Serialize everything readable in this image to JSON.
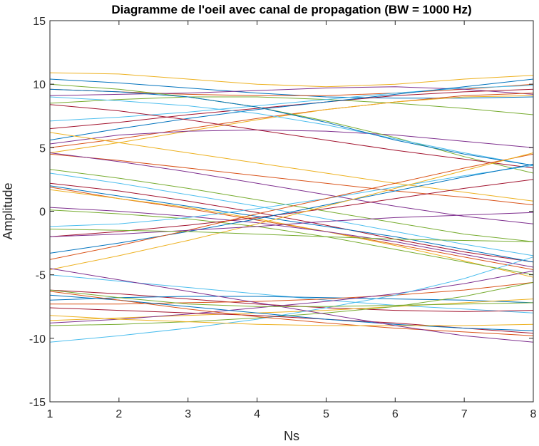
{
  "chart_data": {
    "type": "line",
    "title": "Diagramme de l'oeil avec canal de propagation (BW = 1000 Hz)",
    "xlabel": "Ns",
    "ylabel": "Amplitude",
    "xlim": [
      1,
      8
    ],
    "ylim": [
      -15,
      15
    ],
    "xticks": [
      1,
      2,
      3,
      4,
      5,
      6,
      7,
      8
    ],
    "yticks": [
      15,
      10,
      5,
      0,
      -5,
      -10,
      -15
    ],
    "grid": false,
    "colors": [
      "#0072BD",
      "#D95319",
      "#EDB120",
      "#7E2F8E",
      "#77AC30",
      "#4DBEEE",
      "#A2142F"
    ],
    "x": [
      1,
      2,
      3,
      4,
      5,
      6,
      7,
      8
    ],
    "traces": [
      [
        10.4,
        10.1,
        9.7,
        9.3,
        9.0,
        8.9,
        8.9,
        9.0
      ],
      [
        9.6,
        9.4,
        9.2,
        9.1,
        9.1,
        9.3,
        9.6,
        10.0
      ],
      [
        10.9,
        10.8,
        10.4,
        10.0,
        9.8,
        10.0,
        10.4,
        10.7
      ],
      [
        9.1,
        9.2,
        9.3,
        9.5,
        9.7,
        9.8,
        9.6,
        9.2
      ],
      [
        8.5,
        8.8,
        9.0,
        9.0,
        8.8,
        8.5,
        8.1,
        7.6
      ],
      [
        7.1,
        7.4,
        7.8,
        8.3,
        8.8,
        9.3,
        9.7,
        9.9
      ],
      [
        6.5,
        7.0,
        7.6,
        8.1,
        8.6,
        9.1,
        9.4,
        9.6
      ],
      [
        5.6,
        6.5,
        7.3,
        8.0,
        8.6,
        9.2,
        9.8,
        10.4
      ],
      [
        5.0,
        5.7,
        6.5,
        7.3,
        8.0,
        8.6,
        9.1,
        9.3
      ],
      [
        4.6,
        5.4,
        6.3,
        7.2,
        8.0,
        8.6,
        9.0,
        9.1
      ],
      [
        5.3,
        6.0,
        6.3,
        6.4,
        6.3,
        6.0,
        5.5,
        5.0
      ],
      [
        10.0,
        9.6,
        9.0,
        8.2,
        7.1,
        5.8,
        4.3,
        3.0
      ],
      [
        9.0,
        8.7,
        8.3,
        7.7,
        6.8,
        5.7,
        4.6,
        3.6
      ],
      [
        8.4,
        7.9,
        7.2,
        6.4,
        5.6,
        4.8,
        4.1,
        3.4
      ],
      [
        9.6,
        9.4,
        9.0,
        8.2,
        7.0,
        5.6,
        4.5,
        3.6
      ],
      [
        4.5,
        4.0,
        3.4,
        2.8,
        2.2,
        1.6,
        1.1,
        0.5
      ],
      [
        6.2,
        5.4,
        4.6,
        3.8,
        3.0,
        2.2,
        1.5,
        0.8
      ],
      [
        4.6,
        3.9,
        3.1,
        2.2,
        1.3,
        0.4,
        -0.4,
        -1.0
      ],
      [
        3.3,
        2.6,
        1.8,
        0.9,
        0.0,
        -0.9,
        -1.8,
        -2.4
      ],
      [
        3.0,
        2.2,
        1.3,
        0.4,
        -0.6,
        -1.6,
        -2.6,
        -3.5
      ],
      [
        2.2,
        1.6,
        0.8,
        -0.1,
        -1.1,
        -2.2,
        -3.2,
        -4.0
      ],
      [
        2.0,
        1.2,
        0.4,
        -0.4,
        -1.2,
        -2.0,
        -3.0,
        -4.0
      ],
      [
        1.9,
        1.0,
        0.2,
        -0.7,
        -1.6,
        -2.6,
        -3.6,
        -4.6
      ],
      [
        1.7,
        1.0,
        0.3,
        -0.6,
        -1.6,
        -2.7,
        -3.9,
        -5.2
      ],
      [
        0.3,
        0.0,
        -0.4,
        -0.9,
        -1.6,
        -2.4,
        -3.4,
        -4.4
      ],
      [
        0.1,
        -0.2,
        -0.6,
        -1.2,
        -2.0,
        -3.0,
        -4.0,
        -5.0
      ],
      [
        -1.2,
        -1.0,
        -0.5,
        0.2,
        1.0,
        1.9,
        2.8,
        3.6
      ],
      [
        -2.0,
        -1.6,
        -1.1,
        -0.5,
        0.2,
        1.0,
        1.8,
        2.5
      ],
      [
        -3.3,
        -2.5,
        -1.6,
        -0.6,
        0.5,
        1.6,
        2.7,
        3.7
      ],
      [
        -3.8,
        -2.7,
        -1.5,
        -0.2,
        1.0,
        2.2,
        3.4,
        4.5
      ],
      [
        -4.6,
        -3.5,
        -2.3,
        -1.0,
        0.4,
        1.8,
        3.2,
        4.6
      ],
      [
        -2.0,
        -1.8,
        -1.5,
        -1.2,
        -0.8,
        -0.5,
        -0.3,
        -0.1
      ],
      [
        -1.4,
        -1.5,
        -1.6,
        -1.8,
        -2.0,
        -2.2,
        -2.3,
        -2.4
      ],
      [
        -5.0,
        -5.5,
        -6.0,
        -6.5,
        -7.0,
        -7.4,
        -7.7,
        -8.0
      ],
      [
        -6.2,
        -6.5,
        -6.9,
        -7.3,
        -7.6,
        -7.8,
        -7.9,
        -7.8
      ],
      [
        -7.0,
        -6.8,
        -6.7,
        -6.7,
        -6.8,
        -6.9,
        -7.0,
        -7.2
      ],
      [
        -7.3,
        -7.3,
        -7.2,
        -7.1,
        -6.9,
        -6.6,
        -6.2,
        -5.6
      ],
      [
        -8.6,
        -8.4,
        -8.2,
        -8.0,
        -7.8,
        -7.5,
        -7.2,
        -6.9
      ],
      [
        -8.8,
        -8.5,
        -8.1,
        -7.6,
        -7.1,
        -6.5,
        -5.7,
        -4.7
      ],
      [
        -9.0,
        -8.9,
        -8.7,
        -8.4,
        -8.0,
        -7.5,
        -6.7,
        -5.6
      ],
      [
        -10.3,
        -9.8,
        -9.2,
        -8.5,
        -7.6,
        -6.6,
        -5.3,
        -3.6
      ],
      [
        -7.6,
        -7.8,
        -8.0,
        -8.2,
        -8.5,
        -8.8,
        -9.2,
        -9.6
      ],
      [
        -6.6,
        -7.0,
        -7.5,
        -8.0,
        -8.5,
        -8.9,
        -9.2,
        -9.4
      ],
      [
        -6.3,
        -7.0,
        -7.7,
        -8.3,
        -8.8,
        -9.2,
        -9.5,
        -9.8
      ],
      [
        -8.2,
        -8.5,
        -8.7,
        -8.9,
        -9.0,
        -9.0,
        -9.0,
        -8.9
      ],
      [
        -4.5,
        -5.4,
        -6.3,
        -7.2,
        -8.1,
        -9.0,
        -9.8,
        -10.3
      ],
      [
        -6.2,
        -6.8,
        -7.3,
        -7.5,
        -7.5,
        -7.4,
        -7.3,
        -7.2
      ]
    ]
  }
}
